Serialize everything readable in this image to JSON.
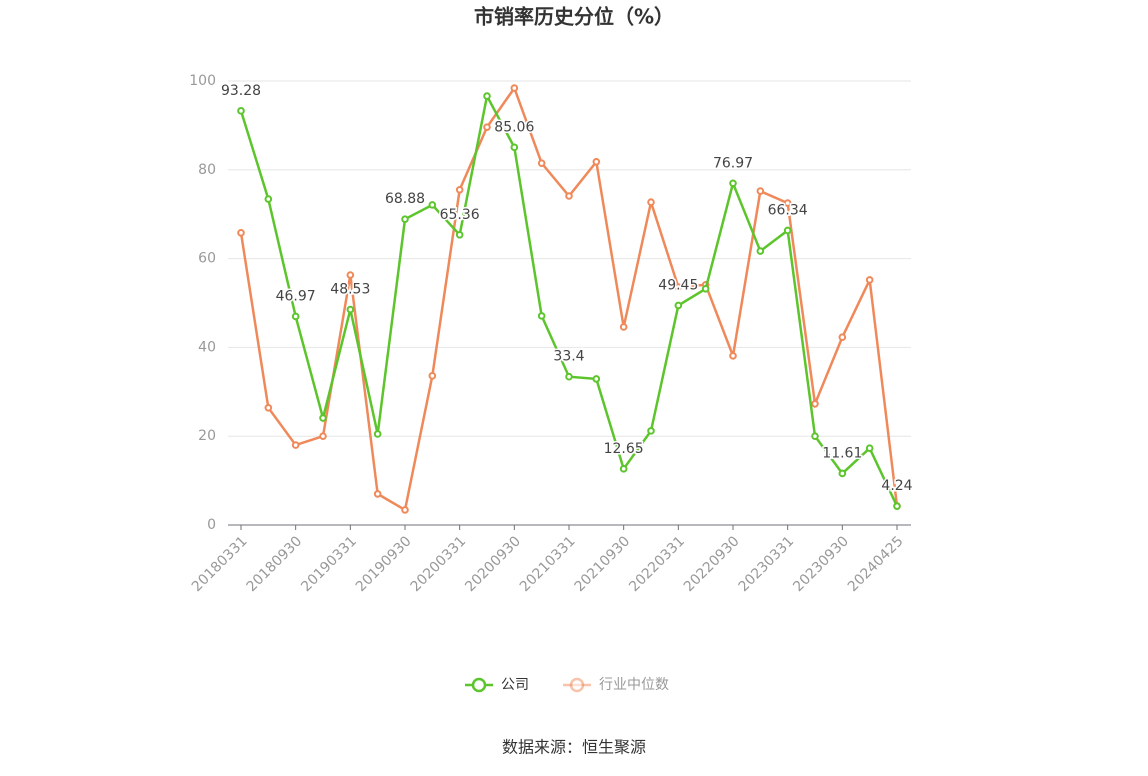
{
  "chart_data": {
    "type": "line",
    "title": "市销率历史分位（%）",
    "source": "数据来源：恒生聚源",
    "categories": [
      "20180331",
      null,
      "20180930",
      null,
      "20190331",
      null,
      "20190930",
      null,
      "20200331",
      null,
      "20200930",
      null,
      "20210331",
      null,
      "20210930",
      null,
      "20220331",
      null,
      "20220930",
      null,
      "20230331",
      null,
      "20230930",
      null,
      "20240425"
    ],
    "series": [
      {
        "name": "公司",
        "color": "#5cc52c",
        "values": [
          93.28,
          73.4,
          46.97,
          24.1,
          48.53,
          20.5,
          68.88,
          72.1,
          65.36,
          96.6,
          85.06,
          47.1,
          33.4,
          32.9,
          12.65,
          21.2,
          49.45,
          53.2,
          76.97,
          61.7,
          66.34,
          20.0,
          11.61,
          17.3,
          4.24
        ],
        "labels": [
          true,
          false,
          true,
          false,
          true,
          false,
          true,
          false,
          true,
          false,
          true,
          false,
          true,
          false,
          true,
          false,
          true,
          false,
          true,
          false,
          true,
          false,
          true,
          false,
          true
        ]
      },
      {
        "name": "行业中位数",
        "color": "#f0895a",
        "values": [
          65.8,
          26.4,
          18.0,
          20.0,
          56.3,
          7.0,
          3.4,
          33.6,
          75.5,
          89.6,
          98.4,
          81.5,
          74.1,
          81.8,
          44.6,
          72.7,
          53.6,
          54.1,
          38.1,
          75.2,
          72.5,
          27.3,
          42.3,
          55.2,
          4.3
        ],
        "labels": [
          false,
          false,
          false,
          false,
          false,
          false,
          false,
          false,
          false,
          false,
          false,
          false,
          false,
          false,
          false,
          false,
          false,
          false,
          false,
          false,
          false,
          false,
          false,
          false,
          false
        ]
      }
    ],
    "ylim": [
      0,
      100
    ],
    "yticks": [
      0,
      20,
      40,
      60,
      80,
      100
    ],
    "grid": true
  }
}
